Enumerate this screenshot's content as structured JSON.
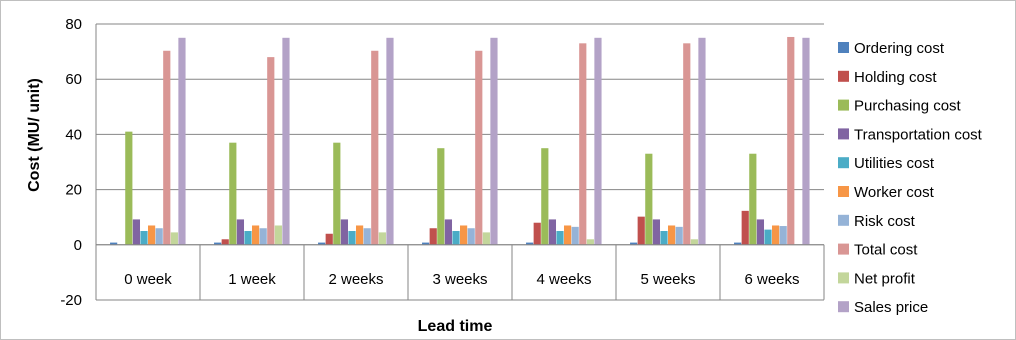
{
  "chart_data": {
    "type": "bar",
    "xlabel": "Lead time",
    "ylabel": "Cost (MU/ unit)",
    "ylim": [
      -20,
      80
    ],
    "yticks": [
      -20,
      0,
      20,
      40,
      60,
      80
    ],
    "ytick_labels": [
      "-20",
      "0",
      "20",
      "40",
      "60",
      "80"
    ],
    "grid": true,
    "legend_position": "right",
    "categories": [
      "0 week",
      "1 week",
      "2 weeks",
      "3 weeks",
      "4 weeks",
      "5 weeks",
      "6 weeks"
    ],
    "series": [
      {
        "name": "Ordering cost",
        "color": "#4f81bd",
        "values": [
          0.8,
          0.8,
          0.8,
          0.8,
          0.8,
          0.8,
          0.8
        ]
      },
      {
        "name": "Holding cost",
        "color": "#c0504d",
        "values": [
          0,
          2,
          4,
          6,
          8,
          10.2,
          12.3
        ]
      },
      {
        "name": "Purchasing cost",
        "color": "#9bbb59",
        "values": [
          41,
          37,
          37,
          35,
          35,
          33,
          33
        ]
      },
      {
        "name": "Transportation cost",
        "color": "#8064a2",
        "values": [
          9.2,
          9.2,
          9.2,
          9.2,
          9.2,
          9.2,
          9.2
        ]
      },
      {
        "name": "Utilities cost",
        "color": "#4bacc6",
        "values": [
          5,
          5,
          5,
          5,
          5,
          5,
          5.5
        ]
      },
      {
        "name": "Worker cost",
        "color": "#f79646",
        "values": [
          7,
          7,
          7,
          7,
          7,
          7,
          7
        ]
      },
      {
        "name": "Risk cost",
        "color": "#95b3d7",
        "values": [
          6,
          6,
          6,
          6,
          6.5,
          6.5,
          6.8
        ]
      },
      {
        "name": "Total cost",
        "color": "#d99694",
        "values": [
          70.3,
          68,
          70.3,
          70.3,
          73,
          73,
          75.3
        ]
      },
      {
        "name": "Net profit",
        "color": "#c3d69b",
        "values": [
          4.5,
          7,
          4.5,
          4.5,
          2,
          2,
          0
        ]
      },
      {
        "name": "Sales price",
        "color": "#b3a2c7",
        "values": [
          75,
          75,
          75,
          75,
          75,
          75,
          75
        ]
      }
    ]
  }
}
